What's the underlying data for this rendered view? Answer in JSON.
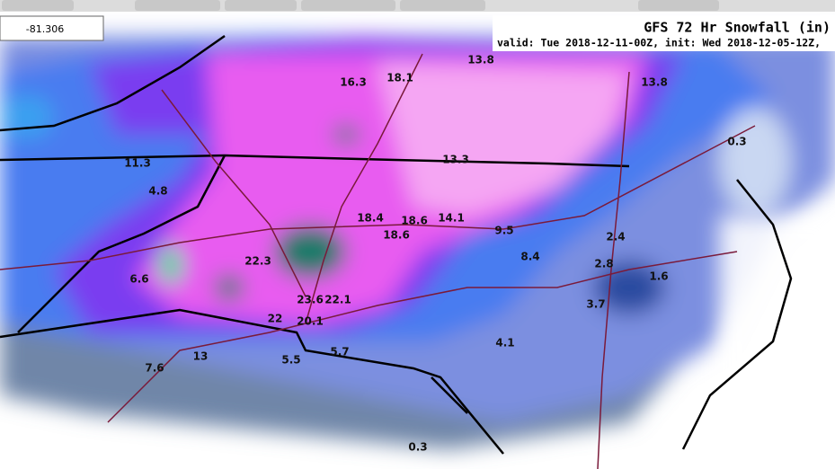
{
  "coordinate": "-81.306",
  "title": "GFS 72 Hr Snowfall (in)",
  "subtitle": "valid: Tue 2018-12-11-00Z, init: Wed 2018-12-05-12Z,",
  "labels": [
    13.8,
    16.3,
    18.1,
    13.8,
    0.3,
    13.3,
    11.3,
    4.8,
    18.4,
    18.6,
    14.1,
    9.5,
    18.6,
    2.4,
    8.4,
    22.3,
    2.8,
    1.6,
    6.6,
    3.7,
    23.6,
    22.1,
    22,
    20.1,
    4.1,
    5.7,
    5.5,
    13,
    7.6,
    0.3
  ]
}
